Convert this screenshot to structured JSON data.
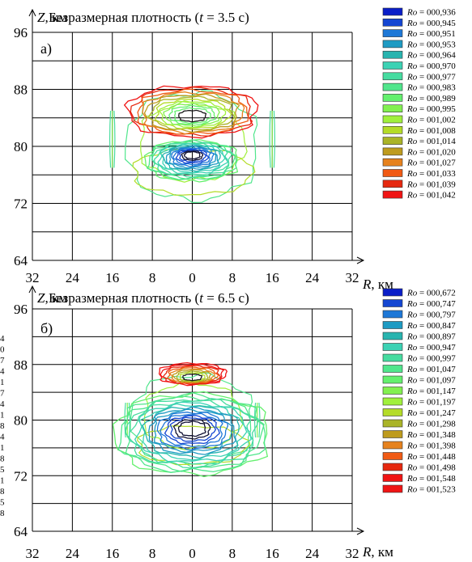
{
  "chart_data": [
    {
      "type": "contour",
      "panel_label": "а)",
      "title": "Безразмерная плотность (t = 3.5 с)",
      "title_parts": {
        "before": "Безразмерная плотность (",
        "t": "t",
        "after": " = 3.5 с)"
      },
      "ylabel": "Z, км",
      "ylabel_parts": {
        "var": "Z",
        "unit": ", км"
      },
      "xlabel": "R, км",
      "xlabel_parts": {
        "var": "R",
        "unit": ", км"
      },
      "x_ticks": [
        "32",
        "24",
        "16",
        "8",
        "0",
        "8",
        "16",
        "24",
        "32"
      ],
      "y_ticks": [
        96,
        88,
        80,
        72,
        64
      ],
      "x_range": [
        -32,
        32
      ],
      "ylim": [
        64,
        96
      ],
      "grid": true,
      "legend_position": "right",
      "legend_var": "Ro",
      "levels": [
        {
          "label": "000,936",
          "color": "#0a1ec8"
        },
        {
          "label": "000,945",
          "color": "#1446d2"
        },
        {
          "label": "000,951",
          "color": "#1e78d7"
        },
        {
          "label": "000,953",
          "color": "#1e9bc3"
        },
        {
          "label": "000,964",
          "color": "#28b4af"
        },
        {
          "label": "000,970",
          "color": "#3cd2b4"
        },
        {
          "label": "000,977",
          "color": "#46dca0"
        },
        {
          "label": "000,983",
          "color": "#50e68c"
        },
        {
          "label": "000,989",
          "color": "#64f06e"
        },
        {
          "label": "000,995",
          "color": "#82f050"
        },
        {
          "label": "001,002",
          "color": "#a0f03c"
        },
        {
          "label": "001,008",
          "color": "#b4dc28"
        },
        {
          "label": "001,014",
          "color": "#aab428"
        },
        {
          "label": "001,020",
          "color": "#be9b1e"
        },
        {
          "label": "001,027",
          "color": "#e6821e"
        },
        {
          "label": "001,033",
          "color": "#f05a14"
        },
        {
          "label": "001,039",
          "color": "#e6280f"
        },
        {
          "label": "001,042",
          "color": "#f01414"
        }
      ],
      "features": {
        "max": {
          "r": 0,
          "z": 84.2,
          "rx": 5.0,
          "rz": 1.5,
          "n": 12,
          "growth": 0.55
        },
        "min": {
          "r": 0,
          "z": 78.8,
          "rx": 3.4,
          "rz": 1.1,
          "n": 16,
          "growth": 0.45
        },
        "side_bands": [
          {
            "r": -16,
            "z": 81,
            "half_height": 4
          },
          {
            "r": 16,
            "z": 81,
            "half_height": 4
          }
        ],
        "outer_ring": {
          "r": 0,
          "z": 80,
          "rx": 13,
          "rz": 7.5
        }
      }
    },
    {
      "type": "contour",
      "panel_label": "б)",
      "title": "Безразмерная плотность (t = 6.5 с)",
      "title_parts": {
        "before": "Безразмерная плотность (",
        "t": "t",
        "after": " = 6.5 с)"
      },
      "ylabel": "Z, км",
      "ylabel_parts": {
        "var": "Z",
        "unit": ", км"
      },
      "xlabel": "R, км",
      "xlabel_parts": {
        "var": "R",
        "unit": ", км"
      },
      "x_ticks": [
        "32",
        "24",
        "16",
        "8",
        "0",
        "8",
        "16",
        "24",
        "32"
      ],
      "y_ticks": [
        96,
        88,
        80,
        72,
        64
      ],
      "x_range": [
        -32,
        32
      ],
      "ylim": [
        64,
        96
      ],
      "grid": true,
      "legend_position": "right",
      "legend_var": "Ro",
      "levels": [
        {
          "label": "000,672",
          "color": "#0a1ec8"
        },
        {
          "label": "000,747",
          "color": "#1446d2"
        },
        {
          "label": "000,797",
          "color": "#1e78d7"
        },
        {
          "label": "000,847",
          "color": "#1e9bc3"
        },
        {
          "label": "000,897",
          "color": "#28b4af"
        },
        {
          "label": "000,947",
          "color": "#3cd2b4"
        },
        {
          "label": "000,997",
          "color": "#46dca0"
        },
        {
          "label": "001,047",
          "color": "#50e68c"
        },
        {
          "label": "001,097",
          "color": "#64f06e"
        },
        {
          "label": "001,147",
          "color": "#82f050"
        },
        {
          "label": "001,197",
          "color": "#a0f03c"
        },
        {
          "label": "001,247",
          "color": "#b4dc28"
        },
        {
          "label": "001,298",
          "color": "#aab428"
        },
        {
          "label": "001,348",
          "color": "#be9b1e"
        },
        {
          "label": "001,398",
          "color": "#e6821e"
        },
        {
          "label": "001,448",
          "color": "#f05a14"
        },
        {
          "label": "001,498",
          "color": "#e6280f"
        },
        {
          "label": "001,548",
          "color": "#f01414"
        },
        {
          "label": "001,523",
          "color": "#f01414"
        }
      ],
      "features": {
        "max": {
          "r": 0,
          "z": 86.1,
          "rx": 3.6,
          "rz": 0.9,
          "n": 9,
          "growth": 0.5
        },
        "min": {
          "r": 0,
          "z": 78.8,
          "rx": 6.0,
          "rz": 2.4,
          "n": 16,
          "growth": 0.42
        },
        "side_bands": [
          {
            "r": -13,
            "z": 80,
            "half_height": 2.5
          },
          {
            "r": 13,
            "z": 80,
            "half_height": 2.5
          }
        ],
        "outer_ring": {
          "r": 0,
          "z": 80,
          "rx": 12,
          "rz": 6.5
        }
      }
    }
  ],
  "cut_margin_numbers": [
    "4",
    "0",
    "7",
    "4",
    "1",
    "7",
    "4",
    "1",
    "8",
    "4",
    "1",
    "8",
    "5",
    "1",
    "8",
    "5",
    "8"
  ]
}
